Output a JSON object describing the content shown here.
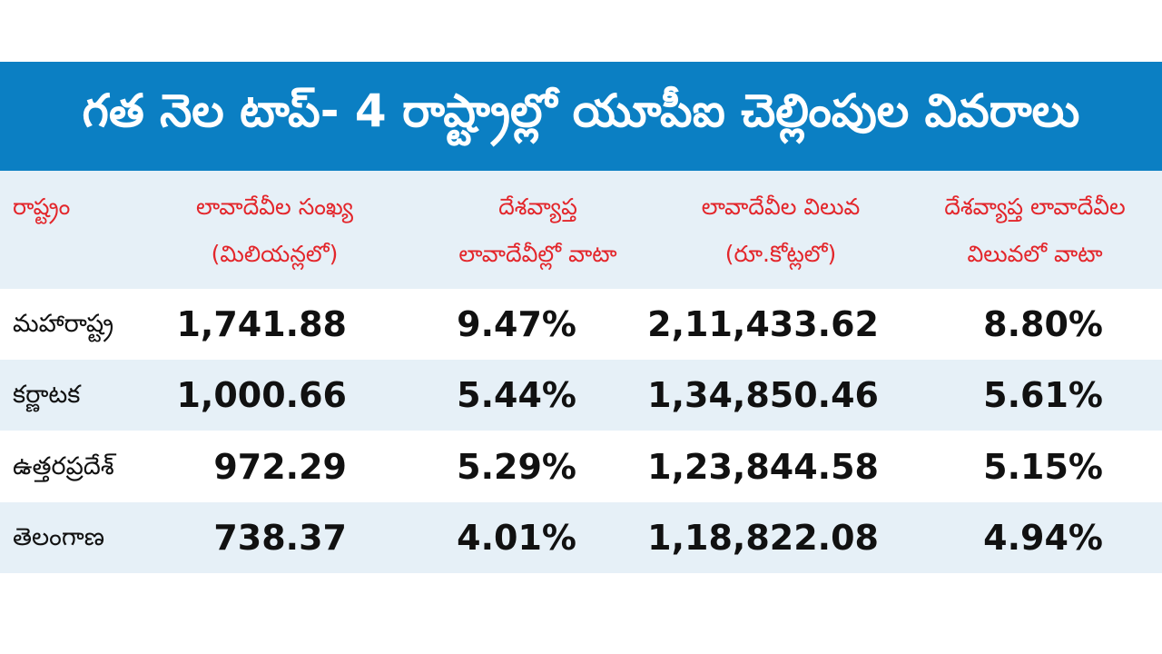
{
  "title": "గత నెల టాప్- 4 రాష్ట్రాల్లో యూపీఐ చెల్లింపుల వివరాలు",
  "colors": {
    "title_bg": "#0b7fc3",
    "header_bg": "#e6f0f7",
    "header_text": "#e3262b"
  },
  "headers": [
    {
      "line1": "రాష్ట్రం",
      "line2": ""
    },
    {
      "line1": "లావాదేవీల సంఖ్య",
      "line2": "(మిలియన్లలో)"
    },
    {
      "line1": "దేశవ్యాప్త",
      "line2": "లావాదేవీల్లో వాటా"
    },
    {
      "line1": "లావాదేవీల విలువ",
      "line2": "(రూ.కోట్లలో)"
    },
    {
      "line1": "దేశవ్యాప్త లావాదేవీల",
      "line2": "విలువలో వాటా"
    }
  ],
  "rows": [
    {
      "state": "మహారాష్ట్ర",
      "count": "1,741.88",
      "count_share": "9.47%",
      "value": "2,11,433.62",
      "value_share": "8.80%"
    },
    {
      "state": "కర్ణాటక",
      "count": "1,000.66",
      "count_share": "5.44%",
      "value": "1,34,850.46",
      "value_share": "5.61%"
    },
    {
      "state": "ఉత్తరప్రదేశ్",
      "count": "972.29",
      "count_share": "5.29%",
      "value": "1,23,844.58",
      "value_share": "5.15%"
    },
    {
      "state": "తెలంగాణ",
      "count": "738.37",
      "count_share": "4.01%",
      "value": "1,18,822.08",
      "value_share": "4.94%"
    }
  ]
}
